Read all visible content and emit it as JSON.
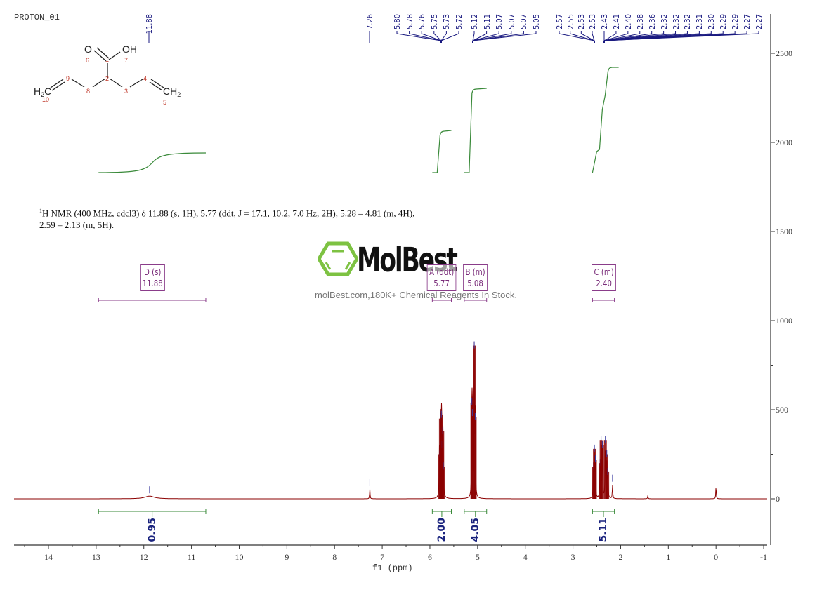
{
  "header": {
    "experiment_title": "PROTON_01"
  },
  "structure": {
    "atoms": [
      {
        "label": "O",
        "num": "6"
      },
      {
        "label": "OH",
        "num": "7"
      },
      {
        "label": "H2C",
        "num": "10"
      },
      {
        "label": "CH2",
        "num": "5"
      }
    ],
    "carbon_numbers": [
      "1",
      "2",
      "3",
      "4",
      "8",
      "9"
    ]
  },
  "description": {
    "line1_prefix": "1",
    "line1": "H NMR (400 MHz, cdcl3) δ 11.88 (s, 1H), 5.77 (ddt, J = 17.1, 10.2, 7.0 Hz, 2H), 5.28 – 4.81 (m, 4H),",
    "line2": "2.59 – 2.13 (m, 5H)."
  },
  "watermark": {
    "logo_text": "MolBest",
    "tagline": "molBest.com,180K+ Chemical Reagents In Stock.",
    "logo_color": "#7dc242"
  },
  "peak_labels": {
    "group_d": [
      "11.88"
    ],
    "solvent": [
      "7.26"
    ],
    "group_a": [
      "5.80",
      "5.78",
      "5.76",
      "5.75",
      "5.73",
      "5.72"
    ],
    "group_b": [
      "5.12",
      "5.11",
      "5.07",
      "5.07",
      "5.07",
      "5.05"
    ],
    "group_c": [
      "2.57",
      "2.55",
      "2.53",
      "2.53",
      "2.43",
      "2.41",
      "2.40",
      "2.38",
      "2.36",
      "2.32",
      "2.32",
      "2.32",
      "2.31",
      "2.30",
      "2.29",
      "2.29",
      "2.27",
      "2.27"
    ]
  },
  "multiplets": [
    {
      "name": "D (s)",
      "shift": "11.88",
      "range": [
        12.95,
        10.7
      ]
    },
    {
      "name": "A (ddt)",
      "shift": "5.77",
      "range": [
        5.95,
        5.55
      ]
    },
    {
      "name": "B (m)",
      "shift": "5.08",
      "range": [
        5.28,
        4.81
      ]
    },
    {
      "name": "C (m)",
      "shift": "2.40",
      "range": [
        2.59,
        2.13
      ]
    }
  ],
  "integrals": [
    {
      "value": "0.95",
      "range": [
        12.95,
        10.7
      ]
    },
    {
      "value": "2.00",
      "range": [
        5.95,
        5.55
      ]
    },
    {
      "value": "4.05",
      "range": [
        5.28,
        4.81
      ]
    },
    {
      "value": "5.11",
      "range": [
        2.59,
        2.13
      ]
    }
  ],
  "colors": {
    "spectrum": "#8b0000",
    "peak_marker": "#3a3aa0",
    "integral": "#3a8a3a",
    "multiplet": "#8a3c8a",
    "axis": "#333333"
  },
  "chart_data": {
    "type": "line",
    "title": "PROTON_01",
    "xlabel": "f1 (ppm)",
    "ylabel": "",
    "xlim": [
      14.7,
      -1.0
    ],
    "ylim": [
      -270,
      2700
    ],
    "x_ticks": [
      "14",
      "13",
      "12",
      "11",
      "10",
      "9",
      "8",
      "7",
      "6",
      "5",
      "4",
      "3",
      "2",
      "1",
      "0",
      "-1"
    ],
    "y_ticks": [
      "2500",
      "2000",
      "1500",
      "1000",
      "500",
      "0"
    ],
    "grid": false,
    "peaks": [
      {
        "ppm": 11.88,
        "intensity": 15,
        "label": "11.88"
      },
      {
        "ppm": 7.26,
        "intensity": 55,
        "label": "7.26"
      },
      {
        "ppm": 5.8,
        "intensity": 250
      },
      {
        "ppm": 5.78,
        "intensity": 450
      },
      {
        "ppm": 5.76,
        "intensity": 470
      },
      {
        "ppm": 5.75,
        "intensity": 300
      },
      {
        "ppm": 5.73,
        "intensity": 380
      },
      {
        "ppm": 5.72,
        "intensity": 180
      },
      {
        "ppm": 5.12,
        "intensity": 540
      },
      {
        "ppm": 5.11,
        "intensity": 480
      },
      {
        "ppm": 5.07,
        "intensity": 860
      },
      {
        "ppm": 5.05,
        "intensity": 460
      },
      {
        "ppm": 2.57,
        "intensity": 180
      },
      {
        "ppm": 2.55,
        "intensity": 280
      },
      {
        "ppm": 2.53,
        "intensity": 220
      },
      {
        "ppm": 2.43,
        "intensity": 200
      },
      {
        "ppm": 2.41,
        "intensity": 330
      },
      {
        "ppm": 2.38,
        "intensity": 300
      },
      {
        "ppm": 2.32,
        "intensity": 330
      },
      {
        "ppm": 2.29,
        "intensity": 250
      },
      {
        "ppm": 2.27,
        "intensity": 150
      },
      {
        "ppm": 2.17,
        "intensity": 80
      },
      {
        "ppm": 1.43,
        "intensity": 15
      },
      {
        "ppm": 0.0,
        "intensity": 70
      }
    ],
    "integrals": [
      {
        "from": 12.95,
        "to": 10.7,
        "value": 0.95
      },
      {
        "from": 5.95,
        "to": 5.55,
        "value": 2.0
      },
      {
        "from": 5.28,
        "to": 4.81,
        "value": 4.05
      },
      {
        "from": 2.59,
        "to": 2.13,
        "value": 5.11
      }
    ],
    "annotation": "1H NMR (400 MHz, cdcl3) δ 11.88 (s, 1H), 5.77 (ddt, J = 17.1, 10.2, 7.0 Hz, 2H), 5.28 – 4.81 (m, 4H), 2.59 – 2.13 (m, 5H)."
  }
}
